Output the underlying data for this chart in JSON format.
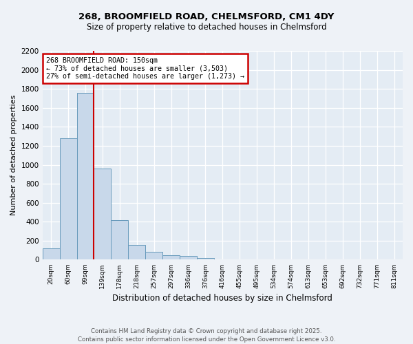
{
  "title1": "268, BROOMFIELD ROAD, CHELMSFORD, CM1 4DY",
  "title2": "Size of property relative to detached houses in Chelmsford",
  "xlabel": "Distribution of detached houses by size in Chelmsford",
  "ylabel": "Number of detached properties",
  "categories": [
    "20sqm",
    "60sqm",
    "99sqm",
    "139sqm",
    "178sqm",
    "218sqm",
    "257sqm",
    "297sqm",
    "336sqm",
    "376sqm",
    "416sqm",
    "455sqm",
    "495sqm",
    "534sqm",
    "574sqm",
    "613sqm",
    "653sqm",
    "692sqm",
    "732sqm",
    "771sqm",
    "811sqm"
  ],
  "values": [
    120,
    1280,
    1760,
    960,
    420,
    155,
    80,
    45,
    40,
    20,
    0,
    0,
    0,
    0,
    0,
    0,
    0,
    0,
    0,
    0,
    0
  ],
  "bar_color": "#c8d8ea",
  "bar_edge_color": "#6699bb",
  "vline_color": "#cc0000",
  "annotation_line1": "268 BROOMFIELD ROAD: 150sqm",
  "annotation_line2": "← 73% of detached houses are smaller (3,503)",
  "annotation_line3": "27% of semi-detached houses are larger (1,273) →",
  "annotation_box_color": "#cc0000",
  "ylim": [
    0,
    2200
  ],
  "yticks": [
    0,
    200,
    400,
    600,
    800,
    1000,
    1200,
    1400,
    1600,
    1800,
    2000,
    2200
  ],
  "footnote1": "Contains HM Land Registry data © Crown copyright and database right 2025.",
  "footnote2": "Contains public sector information licensed under the Open Government Licence v3.0.",
  "bg_color": "#eef2f7",
  "plot_bg_color": "#e4ecf4",
  "grid_color": "#ffffff"
}
